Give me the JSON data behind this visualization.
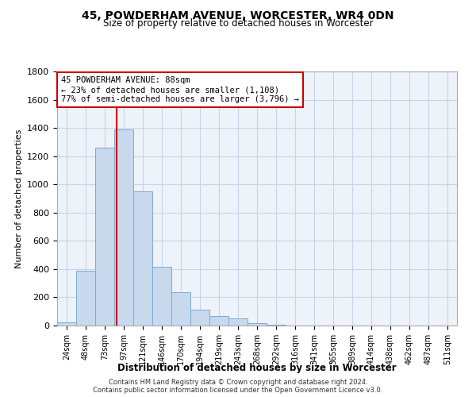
{
  "title": "45, POWDERHAM AVENUE, WORCESTER, WR4 0DN",
  "subtitle": "Size of property relative to detached houses in Worcester",
  "xlabel": "Distribution of detached houses by size in Worcester",
  "ylabel": "Number of detached properties",
  "bin_labels": [
    "24sqm",
    "48sqm",
    "73sqm",
    "97sqm",
    "121sqm",
    "146sqm",
    "170sqm",
    "194sqm",
    "219sqm",
    "243sqm",
    "268sqm",
    "292sqm",
    "316sqm",
    "341sqm",
    "365sqm",
    "389sqm",
    "414sqm",
    "438sqm",
    "462sqm",
    "487sqm",
    "511sqm"
  ],
  "bar_values": [
    25,
    390,
    1260,
    1390,
    950,
    415,
    235,
    110,
    68,
    50,
    15,
    5,
    2,
    1,
    0,
    0,
    0,
    0,
    0,
    0,
    0
  ],
  "bar_color": "#c8d9ee",
  "bar_edge_color": "#7aabcf",
  "property_line_color": "#cc0000",
  "annotation_text": "45 POWDERHAM AVENUE: 88sqm\n← 23% of detached houses are smaller (1,108)\n77% of semi-detached houses are larger (3,796) →",
  "annotation_box_color": "#ffffff",
  "annotation_box_edge": "#cc0000",
  "ylim": [
    0,
    1800
  ],
  "yticks": [
    0,
    200,
    400,
    600,
    800,
    1000,
    1200,
    1400,
    1600,
    1800
  ],
  "background_color": "#ffffff",
  "grid_color": "#c8d4e8",
  "footer_line1": "Contains HM Land Registry data © Crown copyright and database right 2024.",
  "footer_line2": "Contains public sector information licensed under the Open Government Licence v3.0."
}
